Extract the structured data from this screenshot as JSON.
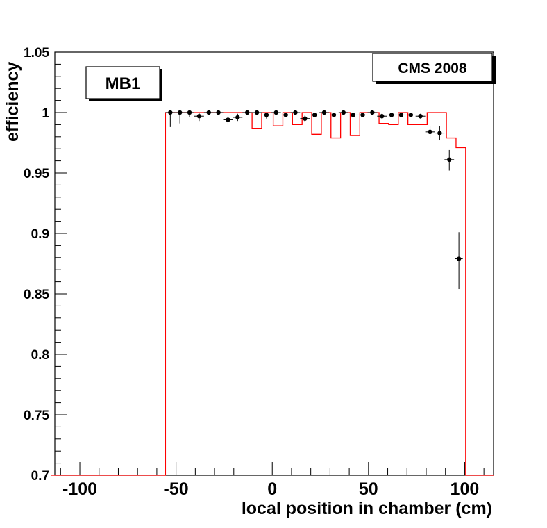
{
  "chart_data": {
    "type": "scatter",
    "xlabel": "local position in chamber (cm)",
    "ylabel": "efficiency",
    "xlim": [
      -113,
      115
    ],
    "ylim": [
      0.7,
      1.05
    ],
    "x_ticks": [
      -100,
      -50,
      0,
      50,
      100
    ],
    "y_ticks": [
      0.7,
      0.75,
      0.8,
      0.85,
      0.9,
      0.95,
      1,
      1.05
    ],
    "x_tick_labels": [
      "-100",
      "-50",
      "0",
      "50",
      "100"
    ],
    "y_tick_labels": [
      "0.7",
      "0.75",
      "0.8",
      "0.85",
      "0.9",
      "0.95",
      "1",
      "1.05"
    ],
    "annotations": {
      "chamber_label": "MB1",
      "experiment_label": "CMS 2008"
    },
    "series": [
      {
        "style": "points-with-errors",
        "color": "#000000",
        "points": [
          {
            "x": -53,
            "y": 1.0,
            "xerr": 2.5,
            "yerr_lo": 0.012,
            "yerr_hi": 0.0
          },
          {
            "x": -48,
            "y": 1.0,
            "xerr": 2.5,
            "yerr_lo": 0.009,
            "yerr_hi": 0.0
          },
          {
            "x": -43,
            "y": 1.0,
            "xerr": 2.5,
            "yerr_lo": 0.004,
            "yerr_hi": 0.0
          },
          {
            "x": -38,
            "y": 0.997,
            "xerr": 2.5,
            "yerr_lo": 0.004,
            "yerr_hi": 0.003
          },
          {
            "x": -33,
            "y": 1.0,
            "xerr": 2.5,
            "yerr_lo": 0.002,
            "yerr_hi": 0.0
          },
          {
            "x": -28,
            "y": 1.0,
            "xerr": 2.5,
            "yerr_lo": 0.002,
            "yerr_hi": 0.0
          },
          {
            "x": -23,
            "y": 0.994,
            "xerr": 2.5,
            "yerr_lo": 0.004,
            "yerr_hi": 0.003
          },
          {
            "x": -18,
            "y": 0.996,
            "xerr": 2.5,
            "yerr_lo": 0.003,
            "yerr_hi": 0.003
          },
          {
            "x": -13,
            "y": 1.0,
            "xerr": 2.5,
            "yerr_lo": 0.002,
            "yerr_hi": 0.0
          },
          {
            "x": -8,
            "y": 1.0,
            "xerr": 2.5,
            "yerr_lo": 0.002,
            "yerr_hi": 0.0
          },
          {
            "x": -3,
            "y": 0.998,
            "xerr": 2.5,
            "yerr_lo": 0.003,
            "yerr_hi": 0.002
          },
          {
            "x": 2,
            "y": 1.0,
            "xerr": 2.5,
            "yerr_lo": 0.002,
            "yerr_hi": 0.0
          },
          {
            "x": 7,
            "y": 0.998,
            "xerr": 2.5,
            "yerr_lo": 0.002,
            "yerr_hi": 0.002
          },
          {
            "x": 12,
            "y": 1.0,
            "xerr": 2.5,
            "yerr_lo": 0.002,
            "yerr_hi": 0.0
          },
          {
            "x": 17,
            "y": 0.995,
            "xerr": 2.5,
            "yerr_lo": 0.003,
            "yerr_hi": 0.003
          },
          {
            "x": 22,
            "y": 0.998,
            "xerr": 2.5,
            "yerr_lo": 0.002,
            "yerr_hi": 0.002
          },
          {
            "x": 27,
            "y": 1.0,
            "xerr": 2.5,
            "yerr_lo": 0.001,
            "yerr_hi": 0.0
          },
          {
            "x": 32,
            "y": 0.998,
            "xerr": 2.5,
            "yerr_lo": 0.002,
            "yerr_hi": 0.002
          },
          {
            "x": 37,
            "y": 1.0,
            "xerr": 2.5,
            "yerr_lo": 0.001,
            "yerr_hi": 0.0
          },
          {
            "x": 42,
            "y": 0.998,
            "xerr": 2.5,
            "yerr_lo": 0.002,
            "yerr_hi": 0.002
          },
          {
            "x": 47,
            "y": 0.998,
            "xerr": 2.5,
            "yerr_lo": 0.002,
            "yerr_hi": 0.002
          },
          {
            "x": 52,
            "y": 1.0,
            "xerr": 2.5,
            "yerr_lo": 0.001,
            "yerr_hi": 0.0
          },
          {
            "x": 57,
            "y": 0.997,
            "xerr": 2.5,
            "yerr_lo": 0.002,
            "yerr_hi": 0.002
          },
          {
            "x": 62,
            "y": 0.998,
            "xerr": 2.5,
            "yerr_lo": 0.002,
            "yerr_hi": 0.002
          },
          {
            "x": 67,
            "y": 0.998,
            "xerr": 2.5,
            "yerr_lo": 0.002,
            "yerr_hi": 0.002
          },
          {
            "x": 72,
            "y": 0.998,
            "xerr": 2.5,
            "yerr_lo": 0.002,
            "yerr_hi": 0.002
          },
          {
            "x": 77,
            "y": 0.997,
            "xerr": 2.5,
            "yerr_lo": 0.002,
            "yerr_hi": 0.002
          },
          {
            "x": 82,
            "y": 0.984,
            "xerr": 2.5,
            "yerr_lo": 0.005,
            "yerr_hi": 0.005
          },
          {
            "x": 87,
            "y": 0.983,
            "xerr": 2.5,
            "yerr_lo": 0.006,
            "yerr_hi": 0.006
          },
          {
            "x": 92,
            "y": 0.961,
            "xerr": 2.5,
            "yerr_lo": 0.009,
            "yerr_hi": 0.008
          },
          {
            "x": 97,
            "y": 0.879,
            "xerr": 2.0,
            "yerr_lo": 0.025,
            "yerr_hi": 0.022
          }
        ]
      },
      {
        "style": "step-histogram",
        "color": "#ff0000",
        "edges": [
          -115,
          -55.5,
          -10.5,
          -5.5,
          0.5,
          5.5,
          10.5,
          15.5,
          20.5,
          25.5,
          30.5,
          35.5,
          40.5,
          45.5,
          55.5,
          60.5,
          65.5,
          70.5,
          80.5,
          90.5,
          95.5,
          100.5,
          115
        ],
        "values": [
          0.7,
          1.0,
          0.987,
          1.0,
          0.989,
          1.0,
          0.99,
          1.0,
          0.982,
          1.0,
          0.979,
          1.0,
          0.981,
          1.0,
          0.991,
          0.99,
          1.0,
          0.99,
          1.0,
          0.979,
          0.971,
          0.7
        ]
      }
    ]
  }
}
